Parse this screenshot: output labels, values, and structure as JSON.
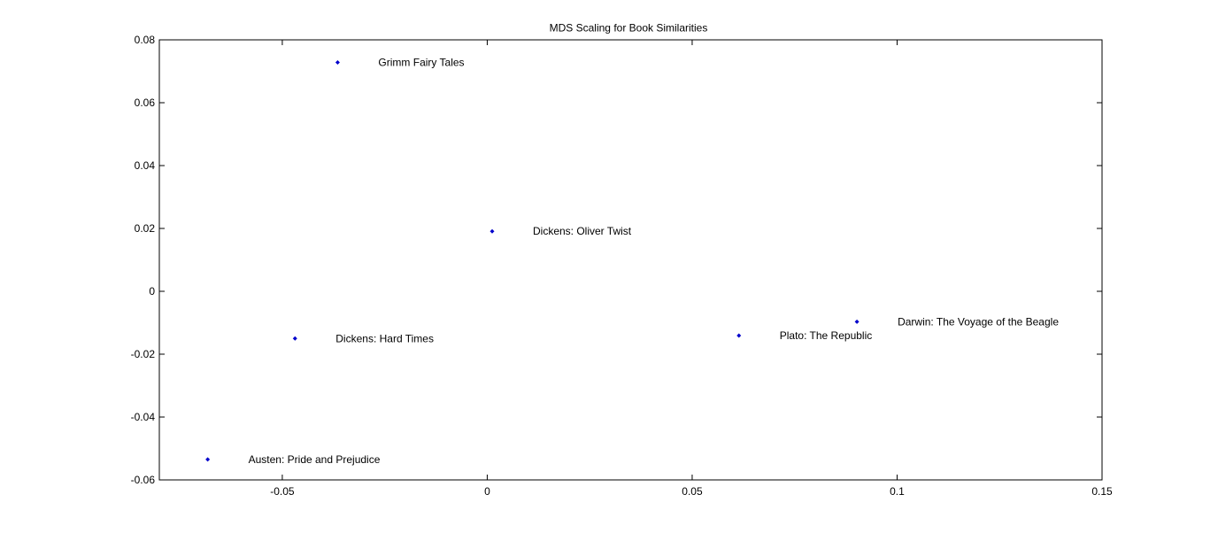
{
  "chart_data": {
    "type": "scatter",
    "title": "MDS Scaling for Book Similarities",
    "xlabel": "",
    "ylabel": "",
    "xlim": [
      -0.08,
      0.15
    ],
    "ylim": [
      -0.06,
      0.08
    ],
    "xticks": [
      -0.05,
      0,
      0.05,
      0.1,
      0.15
    ],
    "xtick_labels": [
      "-0.05",
      "0",
      "0.05",
      "0.1",
      "0.15"
    ],
    "yticks": [
      -0.06,
      -0.04,
      -0.02,
      0,
      0.02,
      0.04,
      0.06,
      0.08
    ],
    "ytick_labels": [
      "-0.06",
      "-0.04",
      "-0.02",
      "0",
      "0.02",
      "0.04",
      "0.06",
      "0.08"
    ],
    "grid": false,
    "marker": "dot",
    "marker_color": "#0000cc",
    "points": [
      {
        "x": -0.0365,
        "y": 0.0728,
        "label": "Grimm Fairy Tales"
      },
      {
        "x": 0.0012,
        "y": 0.0191,
        "label": "Dickens: Oliver Twist"
      },
      {
        "x": -0.0469,
        "y": -0.015,
        "label": "Dickens: Hard Times"
      },
      {
        "x": -0.0682,
        "y": -0.0535,
        "label": "Austen: Pride and Prejudice"
      },
      {
        "x": 0.0614,
        "y": -0.0141,
        "label": "Plato: The Republic"
      },
      {
        "x": 0.0902,
        "y": -0.0097,
        "label": "Darwin: The Voyage of the Beagle"
      }
    ]
  }
}
